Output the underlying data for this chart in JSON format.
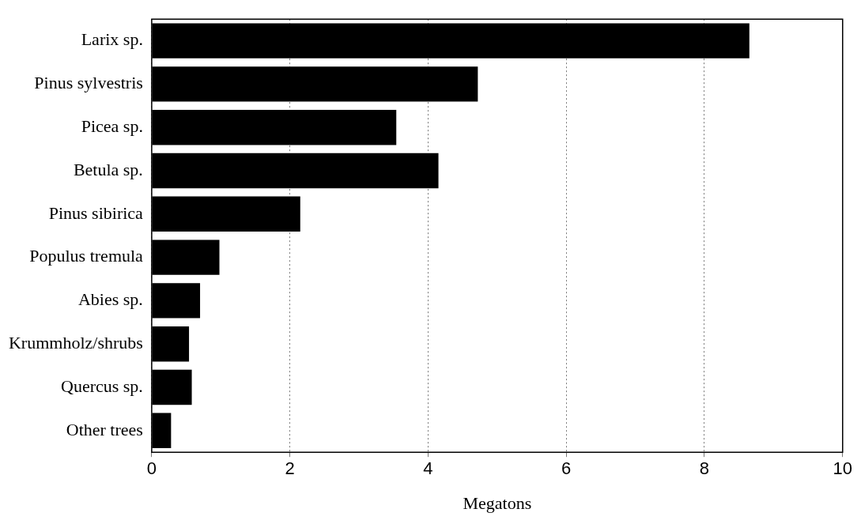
{
  "chart_data": {
    "type": "bar",
    "orientation": "horizontal",
    "xlabel": "Megatons",
    "categories": [
      "Larix sp.",
      "Pinus sylvestris",
      "Picea sp.",
      "Betula sp.",
      "Pinus sibirica",
      "Populus tremula",
      "Abies sp.",
      "Krummholz/shrubs",
      "Quercus sp.",
      "Other trees"
    ],
    "values": [
      8.65,
      4.72,
      3.54,
      4.15,
      2.15,
      0.98,
      0.7,
      0.54,
      0.58,
      0.28
    ],
    "color": "#000000",
    "xlim": [
      0,
      10
    ],
    "xticks": [
      0,
      2,
      4,
      6,
      8,
      10
    ],
    "grid": "x",
    "legend": false
  }
}
